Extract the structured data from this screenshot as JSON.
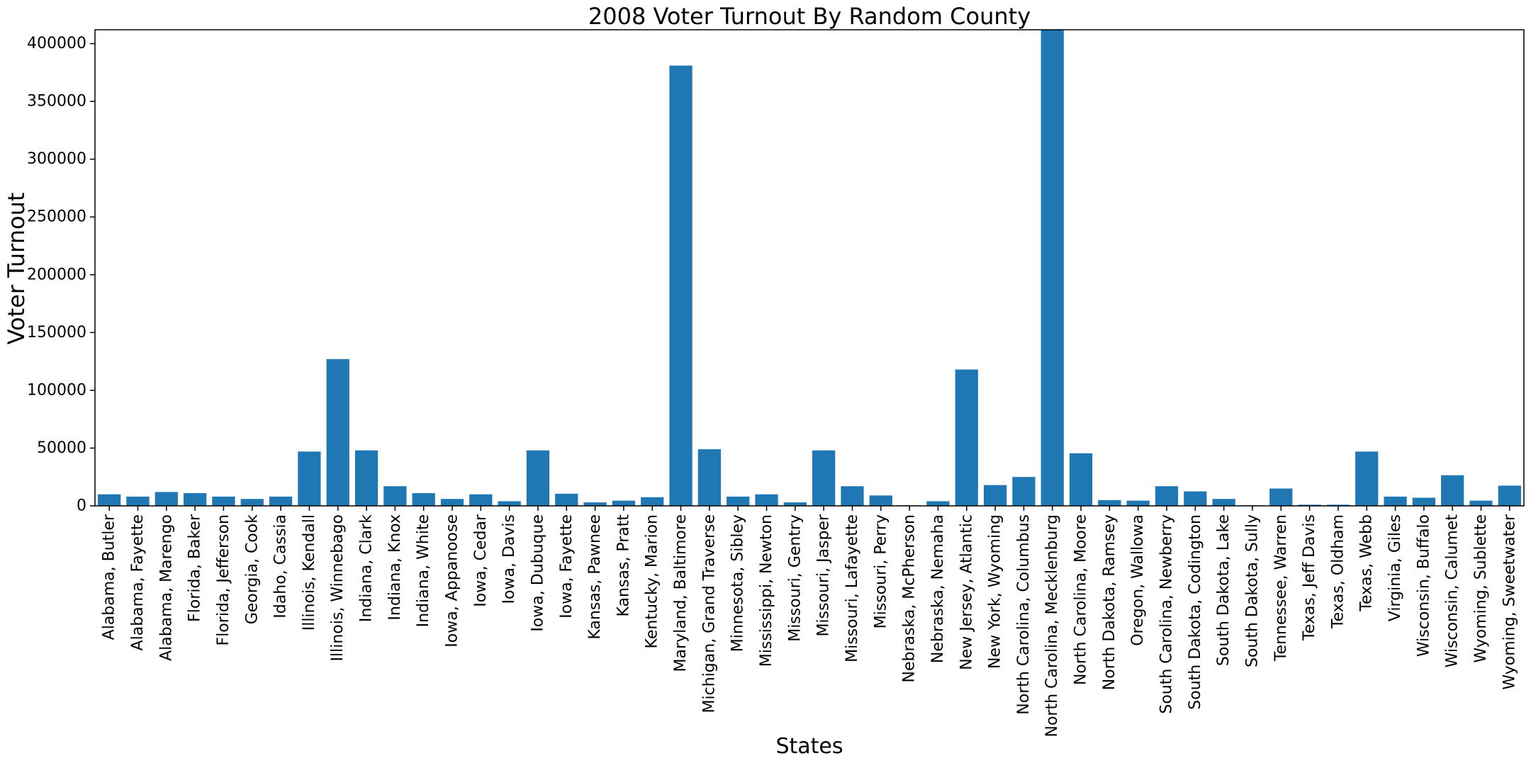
{
  "chart_data": {
    "type": "bar",
    "title": "2008 Voter Turnout By Random County",
    "xlabel": "States",
    "ylabel": "Voter Turnout",
    "ylim": [
      0,
      412000
    ],
    "yticks": [
      0,
      50000,
      100000,
      150000,
      200000,
      250000,
      300000,
      350000,
      400000
    ],
    "grid": false,
    "bar_color": "#1f77b4",
    "categories": [
      "Alabama, Butler",
      "Alabama, Fayette",
      "Alabama, Marengo",
      "Florida, Baker",
      "Florida, Jefferson",
      "Georgia, Cook",
      "Idaho, Cassia",
      "Illinois, Kendall",
      "Illinois, Winnebago",
      "Indiana, Clark",
      "Indiana, Knox",
      "Indiana, White",
      "Iowa, Appanoose",
      "Iowa, Cedar",
      "Iowa, Davis",
      "Iowa, Dubuque",
      "Iowa, Fayette",
      "Kansas, Pawnee",
      "Kansas, Pratt",
      "Kentucky, Marion",
      "Maryland, Baltimore",
      "Michigan, Grand Traverse",
      "Minnesota, Sibley",
      "Mississippi, Newton",
      "Missouri, Gentry",
      "Missouri, Jasper",
      "Missouri, Lafayette",
      "Missouri, Perry",
      "Nebraska, McPherson",
      "Nebraska, Nemaha",
      "New Jersey, Atlantic",
      "New York, Wyoming",
      "North Carolina, Columbus",
      "North Carolina, Mecklenburg",
      "North Carolina, Moore",
      "North Dakota, Ramsey",
      "Oregon, Wallowa",
      "South Carolina, Newberry",
      "South Dakota, Codington",
      "South Dakota, Lake",
      "South Dakota, Sully",
      "Tennessee, Warren",
      "Texas, Jeff Davis",
      "Texas, Oldham",
      "Texas, Webb",
      "Virginia, Giles",
      "Wisconsin, Buffalo",
      "Wisconsin, Calumet",
      "Wyoming, Sublette",
      "Wyoming, Sweetwater"
    ],
    "values": [
      10000,
      8000,
      12000,
      11000,
      8000,
      6000,
      8000,
      47000,
      127000,
      48000,
      17000,
      11000,
      6000,
      10000,
      4000,
      48000,
      10500,
      3000,
      4500,
      7500,
      381000,
      49000,
      8000,
      10000,
      3000,
      48000,
      17000,
      9000,
      500,
      4000,
      118000,
      18000,
      25000,
      412000,
      45500,
      5000,
      4500,
      17000,
      12500,
      6000,
      500,
      15000,
      1000,
      1000,
      47000,
      8000,
      7000,
      26500,
      4500,
      17500
    ]
  }
}
